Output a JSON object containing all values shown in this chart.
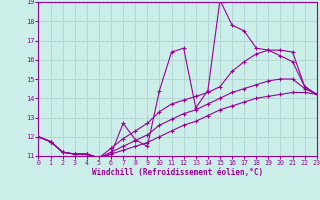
{
  "title": "",
  "xlabel": "Windchill (Refroidissement éolien,°C)",
  "bg_color": "#cceee8",
  "grid_color": "#aacccc",
  "line_color": "#990099",
  "xlim": [
    0,
    23
  ],
  "ylim": [
    11,
    19
  ],
  "xticks": [
    0,
    1,
    2,
    3,
    4,
    5,
    6,
    7,
    8,
    9,
    10,
    11,
    12,
    13,
    14,
    15,
    16,
    17,
    18,
    19,
    20,
    21,
    22,
    23
  ],
  "yticks": [
    11,
    12,
    13,
    14,
    15,
    16,
    17,
    18,
    19
  ],
  "series1_x": [
    0,
    1,
    2,
    3,
    4,
    5,
    6,
    7,
    8,
    9,
    10,
    11,
    12,
    13,
    14,
    15,
    16,
    17,
    18,
    19,
    20,
    21,
    22,
    23
  ],
  "series1_y": [
    12.0,
    11.75,
    11.2,
    11.1,
    11.1,
    10.9,
    11.1,
    12.7,
    11.85,
    11.5,
    14.4,
    16.4,
    16.6,
    13.5,
    14.4,
    19.1,
    17.8,
    17.5,
    16.6,
    16.5,
    16.2,
    15.9,
    14.6,
    14.2
  ],
  "series2_x": [
    0,
    1,
    2,
    3,
    4,
    5,
    6,
    7,
    8,
    9,
    10,
    11,
    12,
    13,
    14,
    15,
    16,
    17,
    18,
    19,
    20,
    21,
    22,
    23
  ],
  "series2_y": [
    12.0,
    11.75,
    11.2,
    11.1,
    11.1,
    10.9,
    11.4,
    11.9,
    12.3,
    12.7,
    13.3,
    13.7,
    13.9,
    14.1,
    14.3,
    14.6,
    15.4,
    15.9,
    16.3,
    16.5,
    16.5,
    16.4,
    14.6,
    14.2
  ],
  "series3_x": [
    0,
    1,
    2,
    3,
    4,
    5,
    6,
    7,
    8,
    9,
    10,
    11,
    12,
    13,
    14,
    15,
    16,
    17,
    18,
    19,
    20,
    21,
    22,
    23
  ],
  "series3_y": [
    12.0,
    11.75,
    11.2,
    11.1,
    11.1,
    10.9,
    11.2,
    11.5,
    11.8,
    12.1,
    12.6,
    12.9,
    13.2,
    13.4,
    13.7,
    14.0,
    14.3,
    14.5,
    14.7,
    14.9,
    15.0,
    15.0,
    14.5,
    14.2
  ],
  "series4_x": [
    0,
    1,
    2,
    3,
    4,
    5,
    6,
    7,
    8,
    9,
    10,
    11,
    12,
    13,
    14,
    15,
    16,
    17,
    18,
    19,
    20,
    21,
    22,
    23
  ],
  "series4_y": [
    12.0,
    11.75,
    11.2,
    11.1,
    11.1,
    10.9,
    11.1,
    11.3,
    11.5,
    11.7,
    12.0,
    12.3,
    12.6,
    12.8,
    13.1,
    13.4,
    13.6,
    13.8,
    14.0,
    14.1,
    14.2,
    14.3,
    14.3,
    14.2
  ]
}
